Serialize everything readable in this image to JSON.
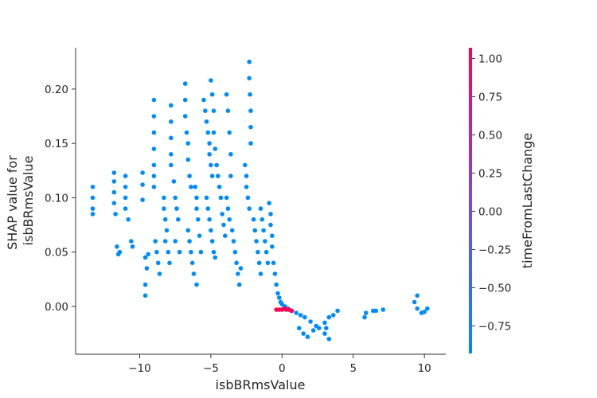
{
  "chart_data": {
    "type": "scatter",
    "title": "",
    "xlabel": "isbBRmsValue",
    "ylabel_lines": [
      "SHAP value for",
      "isbBRmsValue"
    ],
    "xlim": [
      -14.5,
      11.5
    ],
    "ylim": [
      -0.044,
      0.238
    ],
    "x_ticks": [
      -10,
      -5,
      0,
      5,
      10
    ],
    "x_tick_labels": [
      "−10",
      "−5",
      "0",
      "5",
      "10"
    ],
    "y_ticks": [
      0.0,
      0.05,
      0.1,
      0.15,
      0.2
    ],
    "y_tick_labels": [
      "0.00",
      "0.05",
      "0.10",
      "0.15",
      "0.20"
    ],
    "colorbar": {
      "label": "timeFromLastChange",
      "range": [
        -0.93,
        1.07
      ],
      "ticks": [
        1.0,
        0.75,
        0.5,
        0.25,
        0.0,
        -0.25,
        -0.5,
        -0.75
      ],
      "tick_labels": [
        "1.00",
        "0.75",
        "0.50",
        "0.25",
        "0.00",
        "−0.25",
        "−0.50",
        "−0.75"
      ],
      "colors": [
        "#008afb",
        "#7b4ad8",
        "#ff0052"
      ]
    },
    "point_color_default": "#008bfb",
    "point_color_high": "#ff0052",
    "series": [
      {
        "color_value": -0.75,
        "points": [
          [
            -13.3,
            0.11
          ],
          [
            -13.3,
            0.1
          ],
          [
            -13.3,
            0.09
          ],
          [
            -13.3,
            0.085
          ],
          [
            -11.8,
            0.123
          ],
          [
            -11.8,
            0.115
          ],
          [
            -11.8,
            0.105
          ],
          [
            -11.8,
            0.095
          ],
          [
            -11.7,
            0.085
          ],
          [
            -11.6,
            0.055
          ],
          [
            -11.5,
            0.048
          ],
          [
            -11.4,
            0.05
          ],
          [
            -11.0,
            0.12
          ],
          [
            -11.0,
            0.11
          ],
          [
            -11.0,
            0.1
          ],
          [
            -11.0,
            0.09
          ],
          [
            -10.8,
            0.08
          ],
          [
            -10.6,
            0.06
          ],
          [
            -10.5,
            0.055
          ],
          [
            -9.8,
            0.123
          ],
          [
            -9.8,
            0.112
          ],
          [
            -9.8,
            0.098
          ],
          [
            -9.6,
            0.045
          ],
          [
            -9.5,
            0.035
          ],
          [
            -9.4,
            0.048
          ],
          [
            -9.6,
            0.02
          ],
          [
            -9.6,
            0.01
          ],
          [
            -9.0,
            0.19
          ],
          [
            -9.0,
            0.175
          ],
          [
            -9.0,
            0.16
          ],
          [
            -9.0,
            0.145
          ],
          [
            -9.0,
            0.13
          ],
          [
            -9.0,
            0.12
          ],
          [
            -9.0,
            0.11
          ],
          [
            -8.9,
            0.06
          ],
          [
            -8.8,
            0.05
          ],
          [
            -8.7,
            0.04
          ],
          [
            -8.6,
            0.03
          ],
          [
            -8.3,
            0.1
          ],
          [
            -8.3,
            0.09
          ],
          [
            -8.2,
            0.08
          ],
          [
            -8.1,
            0.07
          ],
          [
            -8.2,
            0.06
          ],
          [
            -8.0,
            0.05
          ],
          [
            -7.9,
            0.04
          ],
          [
            -7.8,
            0.185
          ],
          [
            -7.8,
            0.17
          ],
          [
            -7.8,
            0.155
          ],
          [
            -7.8,
            0.14
          ],
          [
            -7.8,
            0.13
          ],
          [
            -7.6,
            0.115
          ],
          [
            -7.5,
            0.1
          ],
          [
            -7.4,
            0.09
          ],
          [
            -7.3,
            0.08
          ],
          [
            -7.5,
            0.06
          ],
          [
            -7.2,
            0.05
          ],
          [
            -6.8,
            0.205
          ],
          [
            -6.8,
            0.19
          ],
          [
            -6.8,
            0.175
          ],
          [
            -6.7,
            0.16
          ],
          [
            -6.6,
            0.15
          ],
          [
            -6.6,
            0.135
          ],
          [
            -6.5,
            0.12
          ],
          [
            -6.4,
            0.11
          ],
          [
            -6.6,
            0.07
          ],
          [
            -6.5,
            0.06
          ],
          [
            -6.4,
            0.05
          ],
          [
            -6.3,
            0.04
          ],
          [
            -6.2,
            0.03
          ],
          [
            -6.0,
            0.02
          ],
          [
            -6.1,
            0.11
          ],
          [
            -6.0,
            0.1
          ],
          [
            -6.0,
            0.09
          ],
          [
            -5.9,
            0.08
          ],
          [
            -5.8,
            0.065
          ],
          [
            -5.7,
            0.05
          ],
          [
            -5.5,
            0.19
          ],
          [
            -5.4,
            0.18
          ],
          [
            -5.3,
            0.17
          ],
          [
            -5.2,
            0.16
          ],
          [
            -5.1,
            0.15
          ],
          [
            -5.1,
            0.14
          ],
          [
            -5.0,
            0.13
          ],
          [
            -4.9,
            0.12
          ],
          [
            -5.0,
            0.208
          ],
          [
            -4.9,
            0.195
          ],
          [
            -4.8,
            0.18
          ],
          [
            -4.8,
            0.16
          ],
          [
            -4.7,
            0.145
          ],
          [
            -4.6,
            0.13
          ],
          [
            -5.3,
            0.1
          ],
          [
            -5.2,
            0.09
          ],
          [
            -5.1,
            0.08
          ],
          [
            -5.0,
            0.07
          ],
          [
            -4.9,
            0.06
          ],
          [
            -4.8,
            0.05
          ],
          [
            -4.7,
            0.045
          ],
          [
            -4.5,
            0.12
          ],
          [
            -4.4,
            0.11
          ],
          [
            -4.3,
            0.1
          ],
          [
            -4.2,
            0.085
          ],
          [
            -4.1,
            0.075
          ],
          [
            -4.0,
            0.065
          ],
          [
            -3.9,
            0.195
          ],
          [
            -3.8,
            0.18
          ],
          [
            -3.7,
            0.16
          ],
          [
            -3.6,
            0.14
          ],
          [
            -3.6,
            0.12
          ],
          [
            -3.9,
            0.1
          ],
          [
            -3.8,
            0.09
          ],
          [
            -3.7,
            0.08
          ],
          [
            -3.5,
            0.07
          ],
          [
            -3.4,
            0.06
          ],
          [
            -3.3,
            0.05
          ],
          [
            -3.2,
            0.04
          ],
          [
            -3.1,
            0.03
          ],
          [
            -3.0,
            0.02
          ],
          [
            -2.9,
            0.035
          ],
          [
            -2.6,
            0.13
          ],
          [
            -2.5,
            0.12
          ],
          [
            -2.5,
            0.11
          ],
          [
            -2.4,
            0.1
          ],
          [
            -2.3,
            0.09
          ],
          [
            -2.3,
            0.225
          ],
          [
            -2.3,
            0.21
          ],
          [
            -2.25,
            0.195
          ],
          [
            -2.2,
            0.18
          ],
          [
            -2.2,
            0.165
          ],
          [
            -2.2,
            0.15
          ],
          [
            -2.0,
            0.08
          ],
          [
            -1.9,
            0.07
          ],
          [
            -1.8,
            0.06
          ],
          [
            -1.7,
            0.05
          ],
          [
            -1.6,
            0.04
          ],
          [
            -1.5,
            0.03
          ],
          [
            -1.5,
            0.09
          ],
          [
            -1.4,
            0.08
          ],
          [
            -1.3,
            0.07
          ],
          [
            -1.2,
            0.06
          ],
          [
            -1.1,
            0.05
          ],
          [
            -1.0,
            0.04
          ],
          [
            -0.9,
            0.095
          ],
          [
            -0.8,
            0.085
          ],
          [
            -0.8,
            0.075
          ],
          [
            -0.7,
            0.065
          ],
          [
            -0.7,
            0.055
          ],
          [
            -0.6,
            0.04
          ],
          [
            -0.5,
            0.03
          ],
          [
            -0.4,
            0.02
          ],
          [
            -0.3,
            0.012
          ],
          [
            -0.2,
            0.008
          ],
          [
            -0.1,
            0.004
          ],
          [
            0.0,
            0.002
          ],
          [
            0.2,
            0.0
          ],
          [
            0.4,
            -0.002
          ],
          [
            0.7,
            -0.004
          ],
          [
            1.0,
            -0.006
          ],
          [
            1.3,
            -0.008
          ],
          [
            1.6,
            -0.01
          ],
          [
            2.0,
            -0.014
          ],
          [
            2.4,
            -0.018
          ],
          [
            1.2,
            -0.02
          ],
          [
            1.5,
            -0.025
          ],
          [
            1.8,
            -0.028
          ],
          [
            2.2,
            -0.022
          ],
          [
            2.6,
            -0.02
          ],
          [
            3.0,
            -0.015
          ],
          [
            3.3,
            -0.01
          ],
          [
            3.6,
            -0.008
          ],
          [
            3.9,
            -0.004
          ],
          [
            3.0,
            -0.025
          ],
          [
            3.3,
            -0.03
          ],
          [
            3.1,
            -0.02
          ],
          [
            5.8,
            -0.01
          ],
          [
            5.9,
            -0.006
          ],
          [
            6.4,
            -0.004
          ],
          [
            6.6,
            -0.004
          ],
          [
            7.1,
            -0.003
          ],
          [
            9.3,
            0.004
          ],
          [
            9.5,
            0.01
          ],
          [
            9.5,
            -0.002
          ],
          [
            10.2,
            -0.002
          ],
          [
            10.0,
            -0.005
          ],
          [
            9.8,
            -0.006
          ]
        ]
      },
      {
        "color_value": 1.0,
        "points": [
          [
            -0.4,
            -0.003
          ],
          [
            -0.2,
            -0.003
          ],
          [
            0.0,
            -0.003
          ],
          [
            0.15,
            -0.002
          ],
          [
            0.3,
            -0.003
          ],
          [
            0.5,
            -0.003
          ],
          [
            0.65,
            -0.004
          ]
        ]
      }
    ]
  }
}
